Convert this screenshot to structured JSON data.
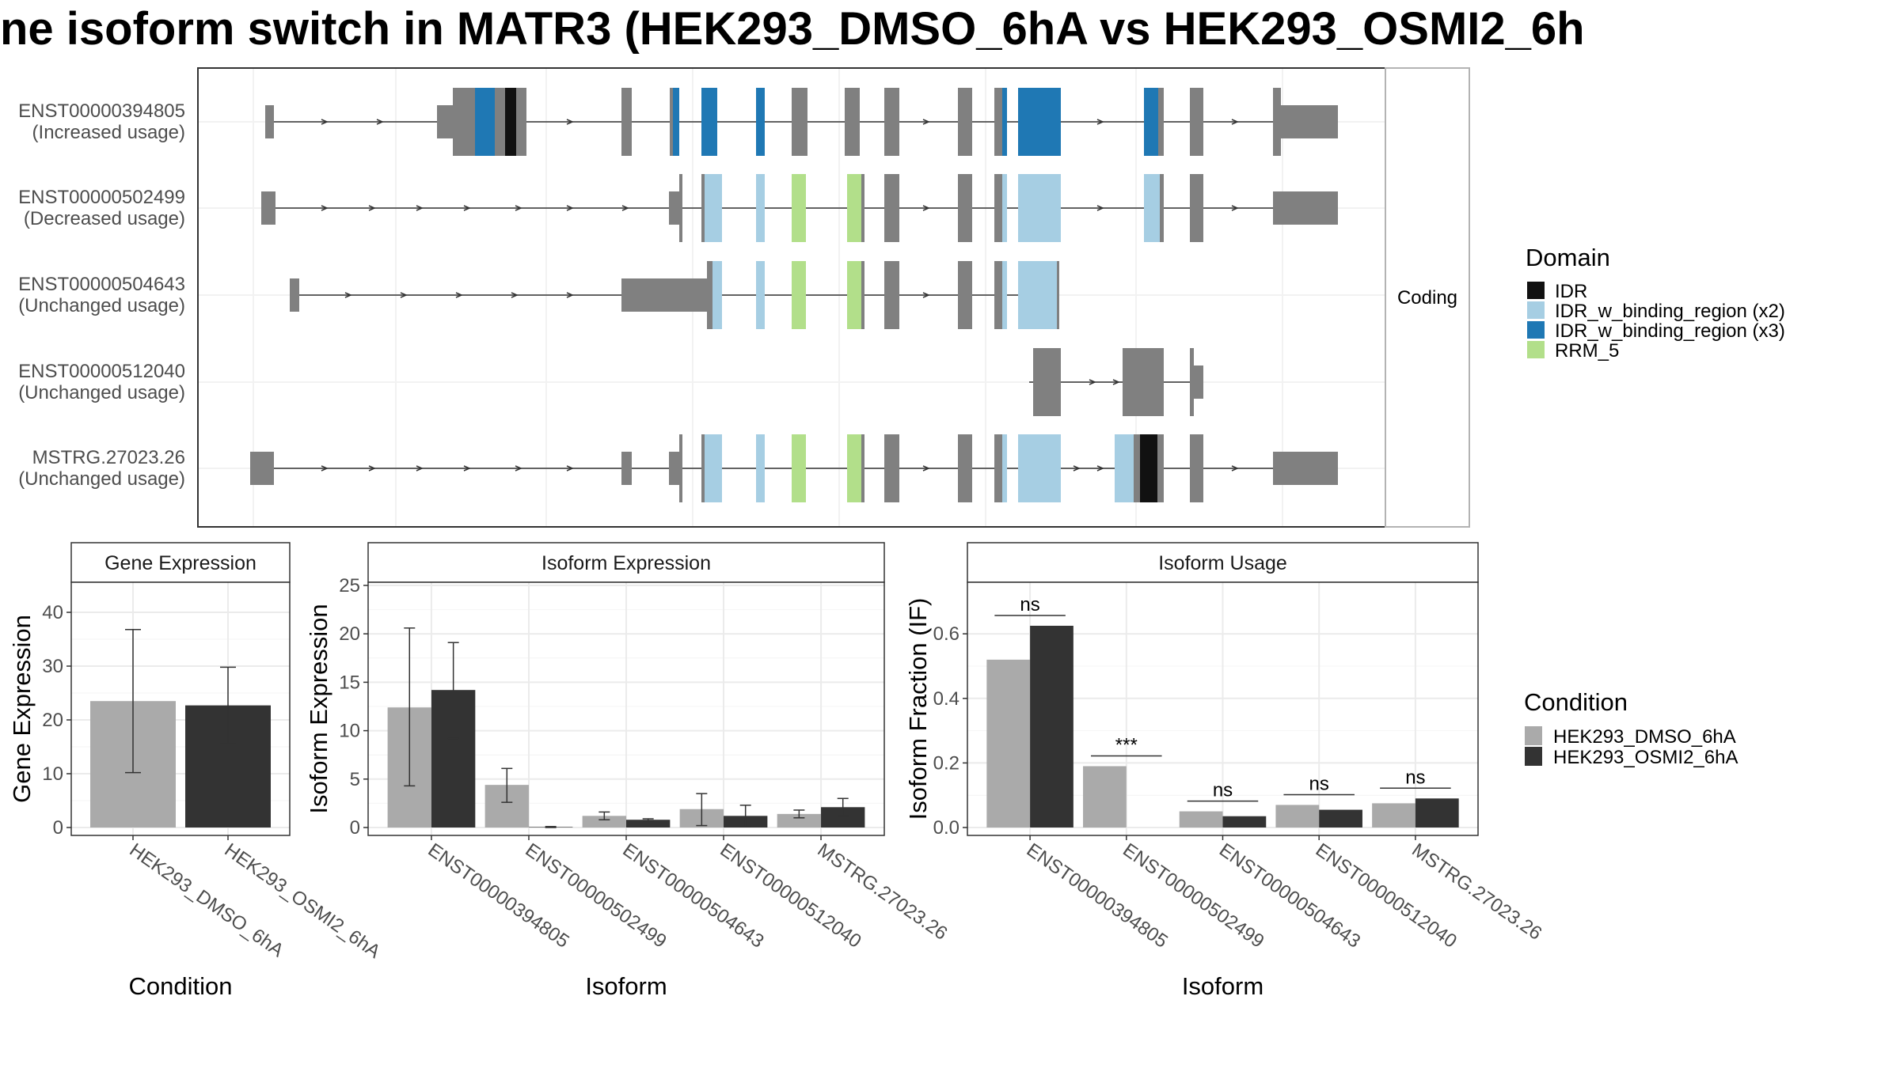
{
  "title": "ne isoform switch in MATR3 (HEK293_DMSO_6hA vs HEK293_OSMI2_6h",
  "colors": {
    "IDR": "#111111",
    "IDR2": "#a6cee3",
    "IDR3": "#1f78b4",
    "RRM": "#b2df8a",
    "exon": "#808080",
    "dmso": "#aaaaaa",
    "osmi": "#333333",
    "grid": "#ebebeb",
    "frame": "#333333"
  },
  "structure": {
    "facet_label": "Coding",
    "isoforms": [
      {
        "id": "ENST00000394805",
        "usage": "(Increased usage)"
      },
      {
        "id": "ENST00000502499",
        "usage": "(Decreased usage)"
      },
      {
        "id": "ENST00000504643",
        "usage": "(Unchanged usage)"
      },
      {
        "id": "ENST00000512040",
        "usage": "(Unchanged usage)"
      },
      {
        "id": "MSTRG.27023.26",
        "usage": "(Unchanged usage)"
      }
    ]
  },
  "domain_legend": {
    "title": "Domain",
    "items": [
      {
        "label": "IDR",
        "color": "#111111"
      },
      {
        "label": "IDR_w_binding_region (x2)",
        "color": "#a6cee3"
      },
      {
        "label": "IDR_w_binding_region (x3)",
        "color": "#1f78b4"
      },
      {
        "label": "RRM_5",
        "color": "#b2df8a"
      }
    ]
  },
  "condition_legend": {
    "title": "Condition",
    "items": [
      {
        "label": "HEK293_DMSO_6hA",
        "color": "#aaaaaa"
      },
      {
        "label": "HEK293_OSMI2_6hA",
        "color": "#333333"
      }
    ]
  },
  "chart_data": [
    {
      "type": "bar",
      "title": "Gene Expression",
      "xlabel": "Condition",
      "ylabel": "Gene Expression",
      "ylim": [
        0,
        45
      ],
      "yticks": [
        0,
        10,
        20,
        30,
        40
      ],
      "categories": [
        "HEK293_DMSO_6hA",
        "HEK293_OSMI2_6hA"
      ],
      "values": [
        23.5,
        22.7
      ],
      "errors": [
        [
          10.2,
          36.8
        ],
        [
          15.6,
          29.8
        ]
      ]
    },
    {
      "type": "bar",
      "title": "Isoform Expression",
      "xlabel": "Isoform",
      "ylabel": "Isoform Expression",
      "ylim": [
        0,
        25
      ],
      "yticks": [
        0,
        5,
        10,
        15,
        20,
        25
      ],
      "categories": [
        "ENST00000394805",
        "ENST00000502499",
        "ENST00000504643",
        "ENST00000512040",
        "MSTRG.27023.26"
      ],
      "series": [
        {
          "name": "HEK293_DMSO_6hA",
          "values": [
            12.4,
            4.4,
            1.2,
            1.9,
            1.4
          ],
          "errors": [
            [
              4.3,
              20.6
            ],
            [
              2.6,
              6.1
            ],
            [
              0.8,
              1.6
            ],
            [
              0.2,
              3.5
            ],
            [
              1.0,
              1.8
            ]
          ]
        },
        {
          "name": "HEK293_OSMI2_6hA",
          "values": [
            14.2,
            0.05,
            0.8,
            1.2,
            2.1
          ],
          "errors": [
            [
              9.2,
              19.1
            ],
            [
              0.0,
              0.1
            ],
            [
              0.7,
              0.9
            ],
            [
              0.1,
              2.3
            ],
            [
              1.2,
              3.0
            ]
          ]
        }
      ]
    },
    {
      "type": "bar",
      "title": "Isoform Usage",
      "xlabel": "Isoform",
      "ylabel": "Isoform Fraction (IF)",
      "ylim": [
        0,
        0.75
      ],
      "yticks": [
        "0.0",
        "0.2",
        "0.4",
        "0.6"
      ],
      "categories": [
        "ENST00000394805",
        "ENST00000502499",
        "ENST00000504643",
        "ENST00000512040",
        "MSTRG.27023.26"
      ],
      "series": [
        {
          "name": "HEK293_DMSO_6hA",
          "values": [
            0.52,
            0.19,
            0.05,
            0.07,
            0.075
          ]
        },
        {
          "name": "HEK293_OSMI2_6hA",
          "values": [
            0.625,
            0.0,
            0.035,
            0.055,
            0.09
          ]
        }
      ],
      "significance": [
        "ns",
        "***",
        "ns",
        "ns",
        "ns"
      ]
    }
  ]
}
